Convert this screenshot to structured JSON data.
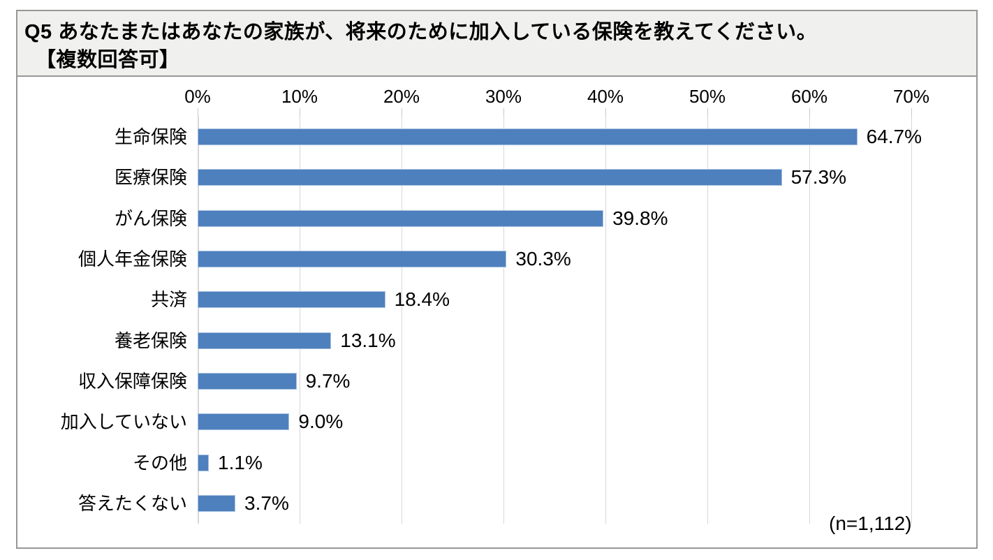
{
  "header": {
    "question_line1": "Q5 あなたまたはあなたの家族が、将来のために加入している保険を教えてください。",
    "question_line2": "【複数回答可】"
  },
  "chart_data": {
    "type": "bar",
    "orientation": "horizontal",
    "title": "Q5 あなたまたはあなたの家族が、将来のために加入している保険を教えてください。【複数回答可】",
    "categories": [
      "生命保険",
      "医療保険",
      "がん保険",
      "個人年金保険",
      "共済",
      "養老保険",
      "収入保障保険",
      "加入していない",
      "その他",
      "答えたくない"
    ],
    "values": [
      64.7,
      57.3,
      39.8,
      30.3,
      18.4,
      13.1,
      9.7,
      9.0,
      1.1,
      3.7
    ],
    "value_labels": [
      "64.7%",
      "57.3%",
      "39.8%",
      "30.3%",
      "18.4%",
      "13.1%",
      "9.7%",
      "9.0%",
      "1.1%",
      "3.7%"
    ],
    "axis": {
      "min": 0,
      "max": 70,
      "step": 10,
      "tick_labels": [
        "0%",
        "10%",
        "20%",
        "30%",
        "40%",
        "50%",
        "60%",
        "70%"
      ]
    },
    "grid": true,
    "legend": "none",
    "sample_note": "(n=1,112)",
    "colors": {
      "bar_fill": "#4e80bd",
      "bar_border": "#a7c1e0",
      "gridline": "#d7d7d7",
      "text": "#000000",
      "title_band_bg": "#f0f0ef",
      "frame_border": "#979797"
    }
  }
}
